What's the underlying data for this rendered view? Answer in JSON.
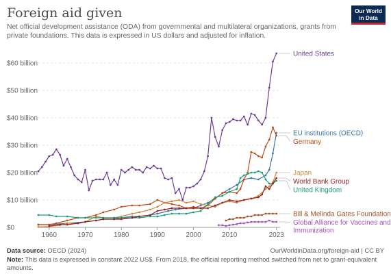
{
  "header": {
    "title": "Foreign aid given",
    "subtitle": "Net official development assistance (ODA) from governmental and multilateral organizations, grants from private foundations. This data is expressed in US dollars and adjusted for inflation.",
    "logo_line1": "Our World",
    "logo_line2": "in Data"
  },
  "footer": {
    "source_label": "Data source:",
    "source_text": "OECD (2024)",
    "url": "OurWorldinData.org/foreign-aid | CC BY",
    "note_label": "Note:",
    "note_text": "This data is expressed in constant 2022 US$. From 2018, the official reporting method switched from net to grant-equivalent amounts."
  },
  "chart_data": {
    "type": "line",
    "title": "Foreign aid given",
    "ylabel": "",
    "xlim": [
      1957,
      2024
    ],
    "ylim": [
      0,
      65
    ],
    "y_ticks": [
      0,
      10,
      20,
      30,
      40,
      50,
      60
    ],
    "y_tick_labels": [
      "$0",
      "$10 billion",
      "$20 billion",
      "$30 billion",
      "$40 billion",
      "$50 billion",
      "$60 billion"
    ],
    "x_ticks": [
      1960,
      1970,
      1980,
      1990,
      2000,
      2010,
      2023
    ],
    "x_tick_labels": [
      "1960",
      "1970",
      "1980",
      "1990",
      "2000",
      "2010",
      "2023"
    ],
    "grid": "horizontal dashed",
    "legend": "right end-labels",
    "series": [
      {
        "name": "United States",
        "color": "#6d3e91",
        "x": [
          1957,
          1958,
          1959,
          1960,
          1961,
          1962,
          1963,
          1964,
          1965,
          1966,
          1967,
          1968,
          1969,
          1970,
          1971,
          1972,
          1973,
          1974,
          1975,
          1976,
          1977,
          1978,
          1979,
          1980,
          1981,
          1982,
          1983,
          1984,
          1985,
          1986,
          1987,
          1988,
          1989,
          1990,
          1991,
          1992,
          1993,
          1994,
          1995,
          1996,
          1997,
          1998,
          1999,
          2000,
          2001,
          2002,
          2003,
          2004,
          2005,
          2006,
          2007,
          2008,
          2009,
          2010,
          2011,
          2012,
          2013,
          2014,
          2015,
          2016,
          2017,
          2018,
          2019,
          2020,
          2021,
          2022,
          2023
        ],
        "y": [
          20.5,
          22,
          24,
          26,
          26.5,
          28.5,
          26.5,
          22.5,
          25,
          22,
          19,
          17.5,
          16.5,
          21,
          13.5,
          17,
          17.5,
          17.5,
          17.5,
          20,
          15.5,
          17.5,
          15.5,
          21,
          20,
          21,
          22,
          21,
          21,
          20,
          22,
          21.5,
          22.5,
          21.5,
          21.5,
          18,
          17.5,
          18,
          12.5,
          14,
          10,
          14.5,
          14.5,
          15,
          16,
          17.5,
          20.5,
          26,
          40,
          33,
          29.5,
          35.5,
          38,
          38.5,
          39.5,
          39,
          39,
          40.5,
          37.5,
          41.5,
          41,
          39,
          37.5,
          40,
          51,
          60.5,
          63.5
        ]
      },
      {
        "name": "EU institutions (OECD)",
        "color": "#3b74a8",
        "x": [
          1957,
          1960,
          1965,
          1970,
          1973,
          1975,
          1978,
          1980,
          1983,
          1985,
          1988,
          1990,
          1993,
          1995,
          1998,
          2000,
          2002,
          2004,
          2006,
          2008,
          2010,
          2012,
          2014,
          2016,
          2018,
          2020,
          2021,
          2022,
          2023
        ],
        "y": [
          1,
          1,
          1.5,
          2,
          2.5,
          3,
          3,
          3.5,
          4,
          4,
          4.5,
          5,
          6,
          6.5,
          7,
          7,
          8,
          9,
          10.5,
          12.5,
          14,
          15.5,
          17.5,
          18,
          17.5,
          19,
          21,
          27,
          34.5
        ]
      },
      {
        "name": "Germany",
        "color": "#c04a16",
        "x": [
          1957,
          1960,
          1962,
          1965,
          1968,
          1970,
          1973,
          1975,
          1978,
          1980,
          1983,
          1985,
          1988,
          1990,
          1992,
          1994,
          1996,
          1998,
          2000,
          2002,
          2004,
          2006,
          2008,
          2010,
          2012,
          2013,
          2014,
          2015,
          2016,
          2017,
          2018,
          2019,
          2020,
          2021,
          2022,
          2023
        ],
        "y": [
          1,
          1,
          1.5,
          2.5,
          3.5,
          3.5,
          4.5,
          5.5,
          6.5,
          7.5,
          8,
          8,
          8.5,
          10,
          9,
          8.5,
          8,
          7,
          7.5,
          7,
          8,
          10.5,
          12.5,
          13,
          12.5,
          14,
          17.5,
          20,
          27.5,
          27,
          26,
          25.5,
          29.5,
          32,
          36.5,
          33.5
        ]
      },
      {
        "name": "Japan",
        "color": "#c58a41",
        "x": [
          1957,
          1960,
          1963,
          1965,
          1968,
          1970,
          1973,
          1975,
          1978,
          1980,
          1983,
          1985,
          1988,
          1990,
          1992,
          1994,
          1996,
          1998,
          2000,
          2002,
          2004,
          2006,
          2008,
          2010,
          2012,
          2014,
          2016,
          2018,
          2020,
          2021,
          2022,
          2023
        ],
        "y": [
          0.2,
          0.3,
          0.8,
          1.5,
          1.5,
          2,
          4,
          3.5,
          3.5,
          4,
          5,
          5.5,
          6.5,
          7.5,
          9,
          9.5,
          10,
          9,
          9.5,
          8.5,
          8,
          7.5,
          9,
          9.5,
          9,
          10,
          10.5,
          11.5,
          14,
          15,
          16.5,
          20
        ]
      },
      {
        "name": "United Kingdom",
        "color": "#18a078",
        "x": [
          1957,
          1960,
          1962,
          1965,
          1968,
          1970,
          1973,
          1975,
          1978,
          1980,
          1983,
          1985,
          1988,
          1990,
          1992,
          1994,
          1996,
          1998,
          2000,
          2002,
          2004,
          2006,
          2008,
          2010,
          2012,
          2013,
          2014,
          2015,
          2016,
          2017,
          2018,
          2019,
          2020,
          2021,
          2022,
          2023
        ],
        "y": [
          4.5,
          4.5,
          4,
          4,
          3.5,
          3.5,
          3.5,
          3.5,
          3.5,
          3.5,
          3.5,
          3.5,
          4,
          4,
          4.5,
          5,
          5,
          5,
          5.5,
          6,
          8.5,
          11,
          11.5,
          13,
          14,
          18,
          19,
          19.5,
          20,
          20,
          20.5,
          20,
          17.5,
          16,
          16,
          17
        ]
      },
      {
        "name": "World Bank Group",
        "color": "#9b2121",
        "x": [
          1960,
          1963,
          1965,
          1968,
          1970,
          1973,
          1975,
          1978,
          1980,
          1983,
          1985,
          1988,
          1990,
          1992,
          1994,
          1996,
          1998,
          2000,
          2002,
          2004,
          2006,
          2008,
          2010,
          2012,
          2014,
          2016,
          2018,
          2019,
          2020,
          2021,
          2022,
          2023
        ],
        "y": [
          0.5,
          1,
          1,
          1.5,
          2,
          2.5,
          3,
          3,
          3,
          3.5,
          4,
          4.5,
          6,
          6.5,
          7,
          7,
          7,
          7,
          7,
          7,
          8,
          9,
          10,
          9.5,
          10,
          10.5,
          11,
          12,
          15,
          14,
          16,
          18
        ]
      },
      {
        "name": "Bill & Melinda Gates Foundation",
        "color": "#a0522d",
        "x": [
          2009,
          2010,
          2011,
          2012,
          2013,
          2014,
          2015,
          2016,
          2017,
          2018,
          2019,
          2020,
          2021,
          2022,
          2023
        ],
        "y": [
          2.5,
          3,
          3,
          3.5,
          3.5,
          3.5,
          4,
          4,
          4.5,
          4.5,
          4.5,
          5,
          5,
          5,
          5
        ]
      },
      {
        "name": "Global Alliance for Vaccines and Immunization",
        "color": "#a54ec0",
        "x": [
          2007,
          2008,
          2009,
          2010,
          2011,
          2012,
          2013,
          2014,
          2015,
          2016,
          2017,
          2018,
          2019,
          2020,
          2021,
          2022,
          2023
        ],
        "y": [
          0.8,
          0.8,
          0.5,
          0.8,
          1,
          1.2,
          1.5,
          1.5,
          1.8,
          2,
          2,
          2,
          2,
          2,
          2.5,
          2,
          2
        ]
      }
    ]
  }
}
